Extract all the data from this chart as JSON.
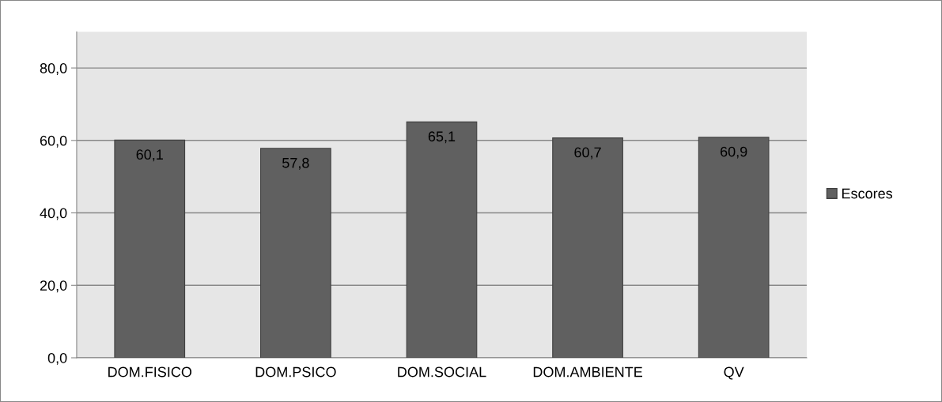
{
  "chart_data": {
    "type": "bar",
    "categories": [
      "DOM.FISICO",
      "DOM.PSICO",
      "DOM.SOCIAL",
      "DOM.AMBIENTE",
      "QV"
    ],
    "series": [
      {
        "name": "Escores",
        "color": "#606060",
        "values": [
          60.1,
          57.8,
          65.1,
          60.7,
          60.9
        ],
        "value_labels": [
          "60,1",
          "57,8",
          "65,1",
          "60,7",
          "60,9"
        ]
      }
    ],
    "ylim": [
      0,
      90
    ],
    "yticks": [
      {
        "value": 0,
        "label": "0,0"
      },
      {
        "value": 20,
        "label": "20,0"
      },
      {
        "value": 40,
        "label": "40,0"
      },
      {
        "value": 60,
        "label": "60,0"
      },
      {
        "value": 80,
        "label": "80,0"
      }
    ],
    "grid": "y",
    "legend": "right"
  }
}
